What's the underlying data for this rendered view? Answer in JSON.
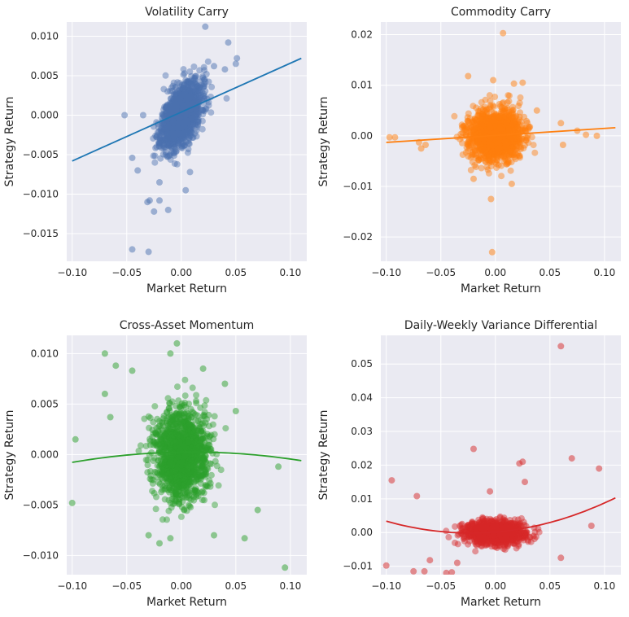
{
  "chart_data": [
    {
      "type": "scatter",
      "title": "Volatility Carry",
      "xlabel": "Market Return",
      "ylabel": "Strategy Return",
      "xlim": [
        -0.105,
        0.115
      ],
      "ylim": [
        -0.0185,
        0.0118
      ],
      "xticks": [
        -0.1,
        -0.05,
        0.0,
        0.05,
        0.1
      ],
      "xtick_labels": [
        "−0.10",
        "−0.05",
        "0.00",
        "0.05",
        "0.10"
      ],
      "yticks": [
        -0.015,
        -0.01,
        -0.005,
        0.0,
        0.005,
        0.01
      ],
      "ytick_labels": [
        "−0.015",
        "−0.010",
        "−0.005",
        "0.000",
        "0.005",
        "0.010"
      ],
      "color": "#4c72b0",
      "line_color": "#1f77b4",
      "fit": {
        "kind": "linear",
        "points": [
          [
            -0.1,
            -0.0058
          ],
          [
            0.11,
            0.0072
          ]
        ]
      },
      "cloud": {
        "n": 1400,
        "x_sd": 0.009,
        "slope": 0.12,
        "resid_sd": 0.0018,
        "x_range": [
          -0.04,
          0.05
        ],
        "y_range": [
          -0.012,
          0.007
        ],
        "seed": 11
      },
      "points": [
        [
          0.022,
          0.0112
        ],
        [
          0.043,
          0.0092
        ],
        [
          0.051,
          0.0072
        ],
        [
          0.05,
          0.0065
        ],
        [
          -0.052,
          0.0
        ],
        [
          -0.029,
          -0.0108
        ],
        [
          -0.031,
          -0.011
        ],
        [
          -0.025,
          -0.0122
        ],
        [
          -0.012,
          -0.012
        ],
        [
          -0.03,
          -0.0173
        ],
        [
          -0.045,
          -0.017
        ],
        [
          -0.045,
          -0.0054
        ],
        [
          -0.04,
          -0.007
        ],
        [
          0.04,
          0.0058
        ],
        [
          -0.035,
          0.0
        ],
        [
          0.004,
          -0.0095
        ],
        [
          -0.02,
          -0.0085
        ],
        [
          0.03,
          0.0062
        ],
        [
          -0.02,
          -0.0108
        ],
        [
          0.008,
          -0.0072
        ]
      ]
    },
    {
      "type": "scatter",
      "title": "Commodity Carry",
      "xlabel": "Market Return",
      "ylabel": "Strategy Return",
      "xlim": [
        -0.105,
        0.115
      ],
      "ylim": [
        -0.0248,
        0.0225
      ],
      "xticks": [
        -0.1,
        -0.05,
        0.0,
        0.05,
        0.1
      ],
      "xtick_labels": [
        "−0.10",
        "−0.05",
        "0.00",
        "0.05",
        "0.10"
      ],
      "yticks": [
        -0.02,
        -0.01,
        0.0,
        0.01,
        0.02
      ],
      "ytick_labels": [
        "−0.02",
        "−0.01",
        "0.00",
        "0.01",
        "0.02"
      ],
      "color": "#ff7f0e",
      "line_color": "#ff7f0e",
      "fit": {
        "kind": "linear",
        "points": [
          [
            -0.1,
            -0.0013
          ],
          [
            0.11,
            0.0016
          ]
        ]
      },
      "cloud": {
        "n": 1400,
        "x_sd": 0.012,
        "slope": 0.0,
        "resid_sd": 0.0025,
        "x_range": [
          -0.06,
          0.07
        ],
        "y_range": [
          -0.011,
          0.008
        ],
        "seed": 23
      },
      "points": [
        [
          0.007,
          0.0203
        ],
        [
          -0.025,
          0.0118
        ],
        [
          0.017,
          0.0103
        ],
        [
          0.025,
          0.0105
        ],
        [
          -0.002,
          0.011
        ],
        [
          -0.003,
          -0.023
        ],
        [
          -0.097,
          -0.0003
        ],
        [
          -0.092,
          -0.0003
        ],
        [
          -0.07,
          -0.0013
        ],
        [
          -0.068,
          -0.0025
        ],
        [
          -0.064,
          -0.0018
        ],
        [
          0.083,
          0.0002
        ],
        [
          0.093,
          0.0
        ],
        [
          0.075,
          0.001
        ],
        [
          0.06,
          0.0025
        ],
        [
          0.062,
          -0.0018
        ],
        [
          -0.004,
          -0.0125
        ],
        [
          0.015,
          -0.0095
        ],
        [
          -0.02,
          -0.0085
        ],
        [
          0.038,
          0.005
        ]
      ]
    },
    {
      "type": "scatter",
      "title": "Cross-Asset Momentum",
      "xlabel": "Market Return",
      "ylabel": "Strategy Return",
      "xlim": [
        -0.105,
        0.115
      ],
      "ylim": [
        -0.0119,
        0.0118
      ],
      "xticks": [
        -0.1,
        -0.05,
        0.0,
        0.05,
        0.1
      ],
      "xtick_labels": [
        "−0.10",
        "−0.05",
        "0.00",
        "0.05",
        "0.10"
      ],
      "yticks": [
        -0.01,
        -0.005,
        0.0,
        0.005,
        0.01
      ],
      "ytick_labels": [
        "−0.010",
        "−0.005",
        "0.000",
        "0.005",
        "0.010"
      ],
      "color": "#2ca02c",
      "line_color": "#2ca02c",
      "fit": {
        "kind": "quadratic",
        "points": [
          [
            -0.1,
            -0.0008
          ],
          [
            -0.05,
            0.0
          ],
          [
            0.0,
            0.0002
          ],
          [
            0.05,
            0.0001
          ],
          [
            0.11,
            -0.0006
          ]
        ]
      },
      "cloud": {
        "n": 1400,
        "x_sd": 0.012,
        "slope": 0.0,
        "resid_sd": 0.0022,
        "x_range": [
          -0.06,
          0.06
        ],
        "y_range": [
          -0.0085,
          0.008
        ],
        "seed": 37
      },
      "points": [
        [
          -0.07,
          0.01
        ],
        [
          -0.06,
          0.0088
        ],
        [
          -0.01,
          0.01
        ],
        [
          -0.004,
          0.011
        ],
        [
          -0.045,
          0.0083
        ],
        [
          -0.097,
          0.0015
        ],
        [
          -0.1,
          -0.0048
        ],
        [
          0.095,
          -0.0112
        ],
        [
          0.058,
          -0.0083
        ],
        [
          0.089,
          -0.0012
        ],
        [
          0.07,
          -0.0055
        ],
        [
          0.05,
          0.0043
        ],
        [
          -0.07,
          0.006
        ],
        [
          -0.065,
          0.0037
        ],
        [
          -0.03,
          -0.008
        ],
        [
          -0.01,
          -0.0083
        ],
        [
          -0.02,
          -0.0088
        ],
        [
          0.03,
          -0.008
        ],
        [
          0.02,
          0.0085
        ],
        [
          0.04,
          0.007
        ]
      ]
    },
    {
      "type": "scatter",
      "title": "Daily-Weekly Variance Differential",
      "xlabel": "Market Return",
      "ylabel": "Strategy Return",
      "xlim": [
        -0.105,
        0.115
      ],
      "ylim": [
        -0.0125,
        0.0585
      ],
      "xticks": [
        -0.1,
        -0.05,
        0.0,
        0.05,
        0.1
      ],
      "xtick_labels": [
        "−0.10",
        "−0.05",
        "0.00",
        "0.05",
        "0.10"
      ],
      "yticks": [
        -0.01,
        0.0,
        0.01,
        0.02,
        0.03,
        0.04,
        0.05
      ],
      "ytick_labels": [
        "−0.01",
        "0.00",
        "0.01",
        "0.02",
        "0.03",
        "0.04",
        "0.05"
      ],
      "color": "#d62728",
      "line_color": "#d62728",
      "fit": {
        "kind": "quadratic",
        "points": [
          [
            -0.1,
            0.0033
          ],
          [
            -0.05,
            0.0005
          ],
          [
            0.0,
            0.0
          ],
          [
            0.05,
            0.003
          ],
          [
            0.11,
            0.0103
          ]
        ]
      },
      "cloud": {
        "n": 1400,
        "x_sd": 0.013,
        "slope": 0.0,
        "resid_sd": 0.0016,
        "x_range": [
          -0.05,
          0.045
        ],
        "y_range": [
          -0.007,
          0.009
        ],
        "seed": 53
      },
      "points": [
        [
          0.06,
          0.0553
        ],
        [
          -0.02,
          0.0248
        ],
        [
          0.07,
          0.022
        ],
        [
          0.095,
          0.019
        ],
        [
          0.025,
          0.021
        ],
        [
          0.022,
          0.0205
        ],
        [
          0.027,
          0.015
        ],
        [
          -0.095,
          0.0155
        ],
        [
          -0.1,
          -0.0098
        ],
        [
          -0.075,
          -0.0115
        ],
        [
          -0.065,
          -0.0115
        ],
        [
          -0.045,
          -0.012
        ],
        [
          -0.04,
          -0.0118
        ],
        [
          -0.072,
          0.0108
        ],
        [
          -0.06,
          -0.0082
        ],
        [
          0.088,
          0.002
        ],
        [
          0.06,
          -0.0075
        ],
        [
          -0.005,
          0.0122
        ],
        [
          0.035,
          -0.001
        ],
        [
          -0.035,
          -0.009
        ]
      ]
    }
  ]
}
